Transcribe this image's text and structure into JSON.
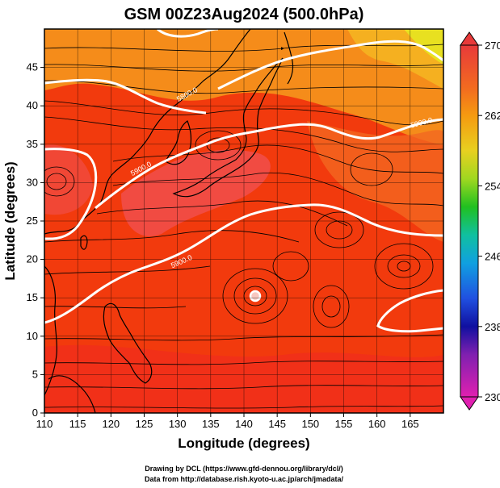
{
  "chart_data": {
    "type": "heatmap",
    "title": "GSM 00Z23Aug2024 (500.0hPa)",
    "xlabel": "Longitude (degrees)",
    "ylabel": "Latitude  (degrees)",
    "xlim": [
      110,
      170
    ],
    "ylim": [
      0,
      50
    ],
    "xticks": [
      110,
      115,
      120,
      125,
      130,
      135,
      140,
      145,
      150,
      155,
      160,
      165
    ],
    "yticks": [
      0,
      5,
      10,
      15,
      20,
      25,
      30,
      35,
      40,
      45
    ],
    "colorbar": {
      "min": 230,
      "max": 270,
      "ticks": [
        270,
        262,
        254,
        246,
        238,
        230
      ]
    },
    "contour_labels": [
      "5800.0",
      "5900.0",
      "5900.0",
      "5900.0"
    ],
    "typhoon_center": {
      "lon": 141.5,
      "lat": 17.5
    },
    "colors": {
      "warm": "#f23a0d",
      "hot": "#f04040",
      "orange": "#f58c1a",
      "yellow": "#f0e020",
      "contour": "#ffffff"
    }
  },
  "credits": {
    "line1": "Drawing by DCL (https://www.gfd-dennou.org/library/dcl/)",
    "line2": "Data from http://database.rish.kyoto-u.ac.jp/arch/jmadata/"
  }
}
